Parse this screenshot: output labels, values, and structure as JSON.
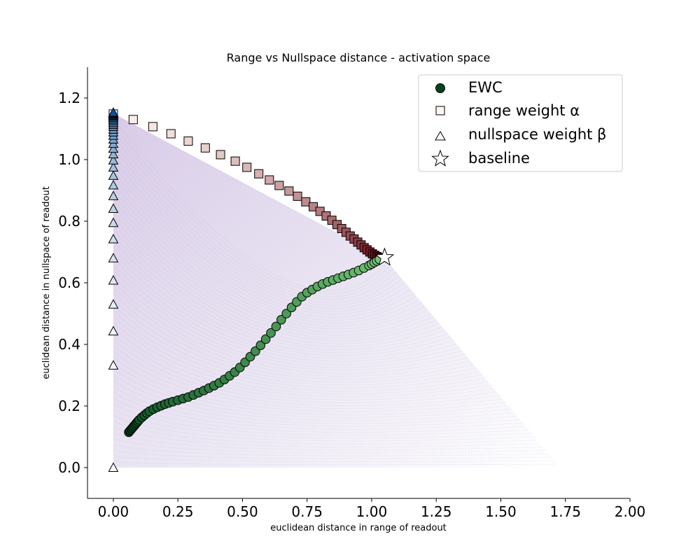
{
  "chart_data": {
    "type": "scatter",
    "title": "Range vs Nullspace distance - activation space",
    "xlabel": "euclidean distance in range of readout",
    "ylabel": "euclidean distance in nullspace of readout",
    "xlim": [
      -0.1,
      2.0
    ],
    "ylim": [
      -0.1,
      1.3
    ],
    "x_ticks": [
      "0.00",
      "0.25",
      "0.50",
      "0.75",
      "1.00",
      "1.25",
      "1.50",
      "1.75",
      "2.00"
    ],
    "y_ticks": [
      "0.0",
      "0.2",
      "0.4",
      "0.6",
      "0.8",
      "1.0",
      "1.2"
    ],
    "grid": false,
    "legend_position": "top-right",
    "background_region": {
      "description_colors": [
        "#d6c8e6",
        "#ffffff"
      ],
      "vertices": [
        [
          0.0,
          1.15
        ],
        [
          1.05,
          0.68
        ],
        [
          1.73,
          0.0
        ],
        [
          0.0,
          0.0
        ]
      ]
    },
    "series": [
      {
        "name": "EWC",
        "marker": "circle",
        "color_start": "#00441b",
        "color_end": "#74c476",
        "points": [
          [
            0.06,
            0.115
          ],
          [
            0.065,
            0.12
          ],
          [
            0.07,
            0.125
          ],
          [
            0.075,
            0.13
          ],
          [
            0.08,
            0.135
          ],
          [
            0.085,
            0.14
          ],
          [
            0.09,
            0.145
          ],
          [
            0.095,
            0.15
          ],
          [
            0.1,
            0.155
          ],
          [
            0.11,
            0.163
          ],
          [
            0.12,
            0.17
          ],
          [
            0.13,
            0.177
          ],
          [
            0.14,
            0.183
          ],
          [
            0.155,
            0.19
          ],
          [
            0.17,
            0.196
          ],
          [
            0.185,
            0.201
          ],
          [
            0.2,
            0.206
          ],
          [
            0.215,
            0.21
          ],
          [
            0.23,
            0.214
          ],
          [
            0.25,
            0.219
          ],
          [
            0.27,
            0.224
          ],
          [
            0.29,
            0.229
          ],
          [
            0.31,
            0.236
          ],
          [
            0.33,
            0.243
          ],
          [
            0.35,
            0.25
          ],
          [
            0.37,
            0.258
          ],
          [
            0.39,
            0.266
          ],
          [
            0.41,
            0.275
          ],
          [
            0.43,
            0.286
          ],
          [
            0.45,
            0.298
          ],
          [
            0.47,
            0.31
          ],
          [
            0.49,
            0.325
          ],
          [
            0.51,
            0.342
          ],
          [
            0.53,
            0.36
          ],
          [
            0.55,
            0.378
          ],
          [
            0.57,
            0.397
          ],
          [
            0.59,
            0.417
          ],
          [
            0.61,
            0.437
          ],
          [
            0.63,
            0.458
          ],
          [
            0.65,
            0.48
          ],
          [
            0.67,
            0.5
          ],
          [
            0.69,
            0.52
          ],
          [
            0.71,
            0.538
          ],
          [
            0.73,
            0.555
          ],
          [
            0.75,
            0.568
          ],
          [
            0.77,
            0.578
          ],
          [
            0.79,
            0.588
          ],
          [
            0.81,
            0.596
          ],
          [
            0.83,
            0.603
          ],
          [
            0.85,
            0.609
          ],
          [
            0.87,
            0.615
          ],
          [
            0.89,
            0.621
          ],
          [
            0.91,
            0.627
          ],
          [
            0.93,
            0.633
          ],
          [
            0.95,
            0.64
          ],
          [
            0.97,
            0.648
          ],
          [
            0.99,
            0.656
          ],
          [
            1.0,
            0.661
          ],
          [
            1.01,
            0.666
          ],
          [
            1.02,
            0.671
          ],
          [
            1.03,
            0.676
          ]
        ]
      },
      {
        "name": "range weight α",
        "marker": "square",
        "color_start": "#fff5f0",
        "color_end": "#67000d",
        "points": [
          [
            0.0,
            1.148
          ],
          [
            0.077,
            1.13
          ],
          [
            0.153,
            1.107
          ],
          [
            0.223,
            1.084
          ],
          [
            0.29,
            1.06
          ],
          [
            0.356,
            1.038
          ],
          [
            0.415,
            1.016
          ],
          [
            0.472,
            0.995
          ],
          [
            0.517,
            0.975
          ],
          [
            0.563,
            0.954
          ],
          [
            0.604,
            0.934
          ],
          [
            0.642,
            0.916
          ],
          [
            0.68,
            0.898
          ],
          [
            0.713,
            0.881
          ],
          [
            0.745,
            0.863
          ],
          [
            0.774,
            0.847
          ],
          [
            0.8,
            0.832
          ],
          [
            0.824,
            0.817
          ],
          [
            0.846,
            0.803
          ],
          [
            0.866,
            0.789
          ],
          [
            0.884,
            0.776
          ],
          [
            0.901,
            0.764
          ],
          [
            0.917,
            0.752
          ],
          [
            0.932,
            0.742
          ],
          [
            0.946,
            0.732
          ],
          [
            0.959,
            0.723
          ],
          [
            0.971,
            0.714
          ],
          [
            0.982,
            0.707
          ],
          [
            0.993,
            0.7
          ],
          [
            1.003,
            0.694
          ],
          [
            1.012,
            0.689
          ],
          [
            1.021,
            0.685
          ],
          [
            1.03,
            0.681
          ]
        ]
      },
      {
        "name": "nullspace weight β",
        "marker": "triangle",
        "color_start": "#ffffff",
        "color_end": "#08519c",
        "points": [
          [
            0.0,
            0.0
          ],
          [
            0.0,
            0.332
          ],
          [
            0.0,
            0.443
          ],
          [
            0.0,
            0.53
          ],
          [
            0.0,
            0.608
          ],
          [
            0.0,
            0.68
          ],
          [
            0.0,
            0.742
          ],
          [
            0.0,
            0.795
          ],
          [
            0.0,
            0.841
          ],
          [
            0.0,
            0.882
          ],
          [
            0.0,
            0.917
          ],
          [
            0.0,
            0.948
          ],
          [
            0.0,
            0.975
          ],
          [
            0.0,
            0.998
          ],
          [
            0.0,
            1.018
          ],
          [
            0.0,
            1.036
          ],
          [
            0.0,
            1.052
          ],
          [
            0.0,
            1.066
          ],
          [
            0.0,
            1.078
          ],
          [
            0.0,
            1.089
          ],
          [
            0.0,
            1.098
          ],
          [
            0.0,
            1.107
          ],
          [
            0.0,
            1.114
          ],
          [
            0.0,
            1.12
          ],
          [
            0.0,
            1.126
          ],
          [
            0.0,
            1.131
          ],
          [
            0.0,
            1.136
          ],
          [
            0.0,
            1.14
          ],
          [
            0.0,
            1.143
          ],
          [
            0.0,
            1.146
          ],
          [
            0.0,
            1.149
          ],
          [
            0.0,
            1.151
          ],
          [
            0.0,
            1.153
          ]
        ]
      },
      {
        "name": "baseline",
        "marker": "star",
        "color_start": "#ffffff",
        "color_end": "#ffffff",
        "points": [
          [
            1.05,
            0.682
          ]
        ]
      }
    ]
  }
}
